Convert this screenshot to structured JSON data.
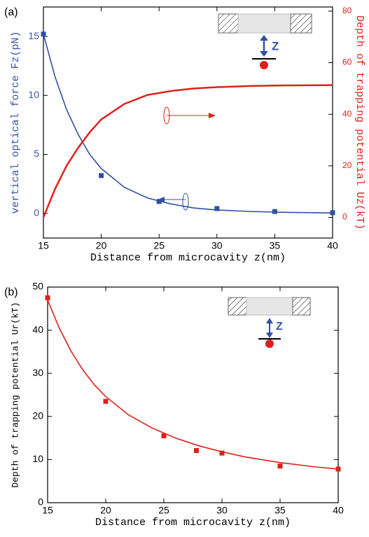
{
  "chart_data": [
    {
      "type": "line",
      "panel_label": "(a)",
      "inset_label": "Z",
      "xlabel": "Distance from microcavity z(nm)",
      "ylabel": "vertical optical force Fz(pN)",
      "y2label": "Depth of trapping potential Uz(kT)",
      "ycolor": "#3a56a5",
      "y2color": "#e0201b",
      "xlim": [
        15,
        40
      ],
      "xticks": [
        15,
        20,
        25,
        30,
        35,
        40
      ],
      "ylim": [
        -2.1,
        17.5
      ],
      "yticks": [
        0,
        5,
        10,
        15
      ],
      "y2lim": [
        -8,
        81.6
      ],
      "y2ticks": [
        0,
        20,
        40,
        60,
        80
      ],
      "series": [
        {
          "mode": "markers",
          "color": "#3050a0",
          "x": [
            15,
            20,
            25,
            30,
            35,
            40
          ],
          "values": [
            15.2,
            3.2,
            1.0,
            0.4,
            0.15,
            0.05
          ]
        },
        {
          "mode": "line",
          "color": "#3050a0",
          "x": [
            15,
            16,
            17,
            18,
            19,
            20,
            22,
            24,
            26,
            28,
            30,
            33,
            36,
            40
          ],
          "values": [
            15.2,
            11.6,
            8.8,
            6.7,
            5.0,
            3.8,
            2.2,
            1.3,
            0.8,
            0.45,
            0.28,
            0.15,
            0.08,
            0.03
          ]
        },
        {
          "mode": "line",
          "axis": "y2",
          "color": "#e0201b",
          "x": [
            15,
            16,
            17,
            18,
            19,
            20,
            22,
            24,
            26,
            28,
            30,
            33,
            36,
            40
          ],
          "values": [
            0,
            11,
            20,
            27,
            33,
            38,
            44,
            47.5,
            49,
            50,
            50.5,
            51,
            51.2,
            51.3
          ]
        }
      ]
    },
    {
      "type": "line",
      "panel_label": "(b)",
      "inset_label": "Z",
      "xlabel": "Distance from microcavity z(nm)",
      "ylabel": "Depth of trapping potential Ur(kT)",
      "xlim": [
        15,
        40
      ],
      "xticks": [
        15,
        20,
        25,
        30,
        35,
        40
      ],
      "ylim": [
        0,
        50
      ],
      "yticks": [
        0,
        10,
        20,
        30,
        40,
        50
      ],
      "series": [
        {
          "mode": "markers",
          "color": "#e0201b",
          "x": [
            15,
            20,
            25,
            27.8,
            30,
            35,
            40
          ],
          "values": [
            47.5,
            23.5,
            15.5,
            12.1,
            11.5,
            8.5,
            7.8
          ]
        },
        {
          "mode": "line",
          "color": "#e0201b",
          "x": [
            15,
            16,
            17,
            18,
            19,
            20,
            22,
            24,
            26,
            28,
            30,
            32,
            35,
            38,
            40
          ],
          "values": [
            47,
            40.5,
            35.2,
            30.9,
            27.4,
            24.6,
            20.3,
            17.3,
            15.0,
            13.2,
            11.8,
            10.6,
            9.3,
            8.3,
            7.8
          ]
        }
      ]
    }
  ]
}
